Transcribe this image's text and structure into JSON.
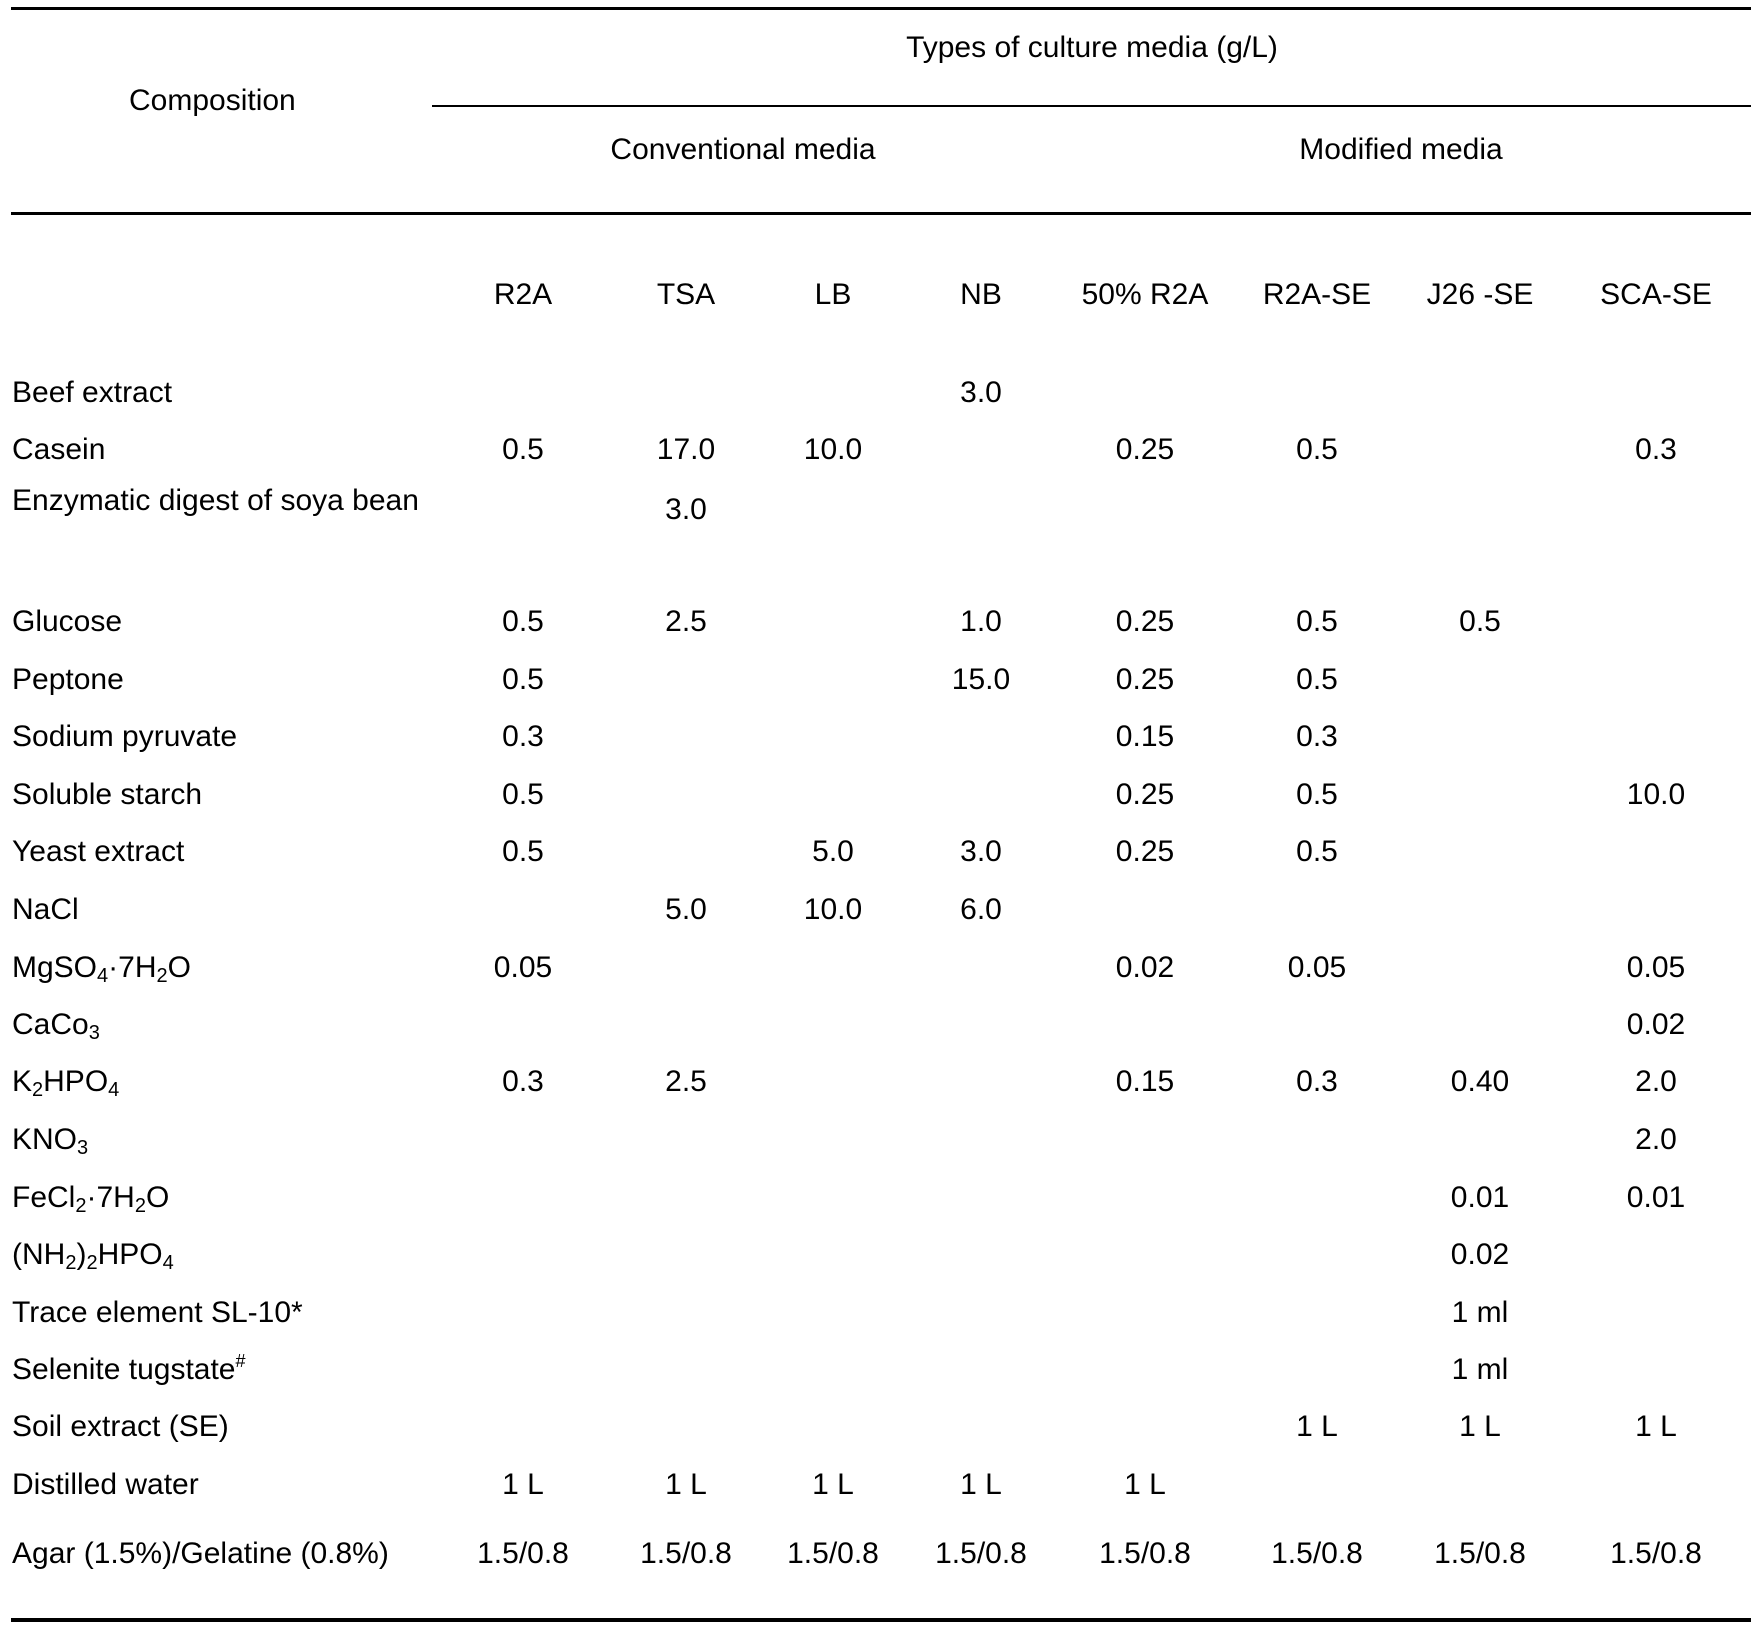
{
  "table": {
    "composition_header": "Composition",
    "group_header": "Types of culture media (g/L)",
    "subgroups": [
      "Conventional media",
      "Modified media"
    ],
    "columns": [
      "R2A",
      "TSA",
      "LB",
      "NB",
      "50% R2A",
      "R2A-SE",
      "J26 -SE",
      "SCA-SE"
    ],
    "rows": [
      {
        "label": "Beef extract",
        "values": [
          "",
          "",
          "",
          "3.0",
          "",
          "",
          "",
          ""
        ]
      },
      {
        "label": "Casein",
        "values": [
          "0.5",
          "17.0",
          "10.0",
          "",
          "0.25",
          "0.5",
          "",
          "0.3"
        ]
      },
      {
        "label": "Enzymatic digest of soya bean",
        "values": [
          "",
          "3.0",
          "",
          "",
          "",
          "",
          "",
          ""
        ]
      },
      {
        "label": "Glucose",
        "values": [
          "0.5",
          "2.5",
          "",
          "1.0",
          "0.25",
          "0.5",
          "0.5",
          ""
        ]
      },
      {
        "label": "Peptone",
        "values": [
          "0.5",
          "",
          "",
          "15.0",
          "0.25",
          "0.5",
          "",
          ""
        ]
      },
      {
        "label": "Sodium pyruvate",
        "values": [
          "0.3",
          "",
          "",
          "",
          "0.15",
          "0.3",
          "",
          ""
        ]
      },
      {
        "label": "Soluble starch",
        "values": [
          "0.5",
          "",
          "",
          "",
          "0.25",
          "0.5",
          "",
          "10.0"
        ]
      },
      {
        "label": "Yeast extract",
        "values": [
          "0.5",
          "",
          "5.0",
          "3.0",
          "0.25",
          "0.5",
          "",
          ""
        ]
      },
      {
        "label": "NaCl",
        "values": [
          "",
          "5.0",
          "10.0",
          "6.0",
          "",
          "",
          "",
          ""
        ]
      },
      {
        "label": "MgSO4·7H2O",
        "values": [
          "0.05",
          "",
          "",
          "",
          "0.02",
          "0.05",
          "",
          "0.05"
        ]
      },
      {
        "label": "CaCo3",
        "values": [
          "",
          "",
          "",
          "",
          "",
          "",
          "",
          "0.02"
        ]
      },
      {
        "label": "K2HPO4",
        "values": [
          "0.3",
          "2.5",
          "",
          "",
          "0.15",
          "0.3",
          "0.40",
          "2.0"
        ]
      },
      {
        "label": "KNO3",
        "values": [
          "",
          "",
          "",
          "",
          "",
          "",
          "",
          "2.0"
        ]
      },
      {
        "label": "FeCl2·7H2O",
        "values": [
          "",
          "",
          "",
          "",
          "",
          "",
          "0.01",
          "0.01"
        ]
      },
      {
        "label": "(NH2)2HPO4",
        "values": [
          "",
          "",
          "",
          "",
          "",
          "",
          "0.02",
          ""
        ]
      },
      {
        "label": "Trace element SL-10*",
        "values": [
          "",
          "",
          "",
          "",
          "",
          "",
          "1 ml",
          ""
        ]
      },
      {
        "label": "Selenite tugstate#",
        "values": [
          "",
          "",
          "",
          "",
          "",
          "",
          "1 ml",
          ""
        ]
      },
      {
        "label": "Soil extract (SE)",
        "values": [
          "",
          "",
          "",
          "",
          "",
          "1 L",
          "1 L",
          "1 L"
        ]
      },
      {
        "label": "Distilled water",
        "values": [
          "1 L",
          "1 L",
          "1 L",
          "1 L",
          "1 L",
          "",
          "",
          ""
        ]
      },
      {
        "label": "Agar (1.5%)/Gelatine (0.8%)",
        "values": [
          "1.5/0.8",
          "1.5/0.8",
          "1.5/0.8",
          "1.5/0.8",
          "1.5/0.8",
          "1.5/0.8",
          "1.5/0.8",
          "1.5/0.8"
        ]
      }
    ]
  }
}
